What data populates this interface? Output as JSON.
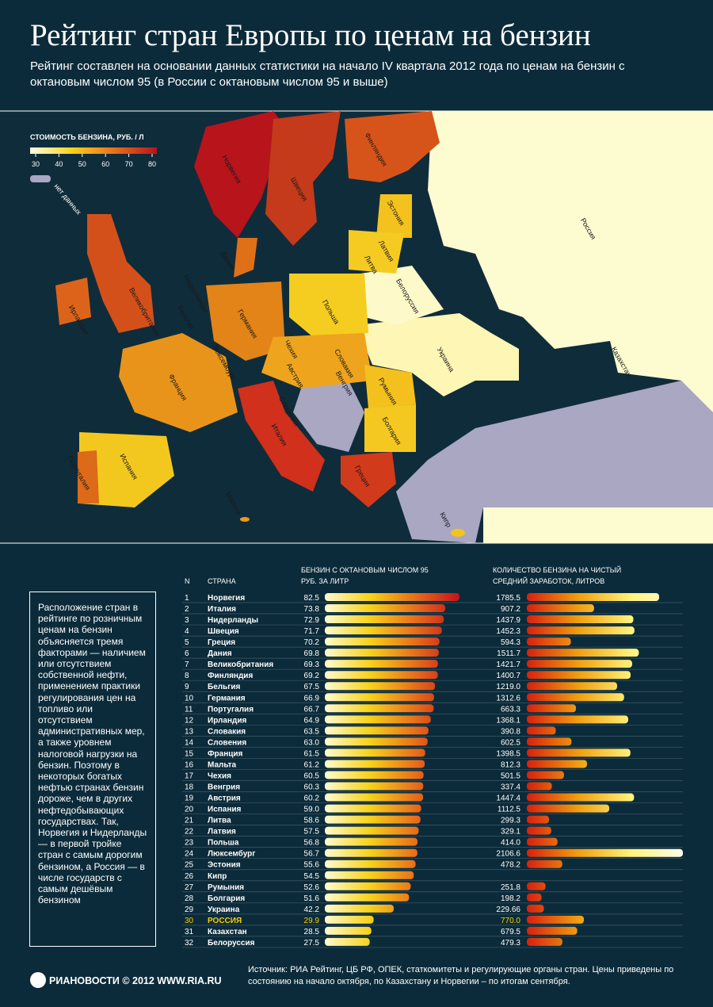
{
  "header": {
    "title": "Рейтинг стран Европы по ценам на бензин",
    "subtitle": "Рейтинг составлен на основании данных статистики на начало IV квартала 2012 года по ценам на бензин с октановым числом 95 (в России с октановым числом 95 и выше)"
  },
  "map": {
    "legend_title": "СТОИМОСТЬ БЕНЗИНА, РУБ. / Л",
    "legend_ticks": [
      30,
      40,
      50,
      60,
      70,
      80
    ],
    "legend_colors": [
      "#fffde0",
      "#f7d21a",
      "#e8701a",
      "#b8121c"
    ],
    "no_data_label": "нет данных",
    "no_data_color": "#a9a7c2",
    "labels": [
      "Норвегия",
      "Швеция",
      "Финляндия",
      "Эстония",
      "Латвия",
      "Литва",
      "Россия",
      "Дания",
      "Нидерланды",
      "Великобритания",
      "Ирландия",
      "Бельгия",
      "Германия",
      "Польша",
      "Белоруссия",
      "Украина",
      "Казахстан",
      "Чехия",
      "Люксембург",
      "Словакия",
      "Австрия",
      "Венгрия",
      "Франция",
      "Румыния",
      "Словения",
      "Болгария",
      "Италия",
      "Испания",
      "Португалия",
      "Греция",
      "Мальта",
      "Кипр"
    ]
  },
  "table": {
    "rank_header": "N",
    "country_header": "СТРАНА",
    "ranks": [
      1,
      2,
      3,
      4,
      5,
      6,
      7,
      8,
      9,
      10,
      11,
      12,
      13,
      14,
      15,
      16,
      17,
      18,
      19,
      20,
      21,
      22,
      23,
      24,
      25,
      26,
      27,
      28,
      29,
      30,
      31,
      32
    ],
    "countries": [
      "Норвегия",
      "Италия",
      "Нидерланды",
      "Швеция",
      "Греция",
      "Дания",
      "Великобритания",
      "Финляндия",
      "Бельгия",
      "Германия",
      "Португалия",
      "Ирландия",
      "Словакия",
      "Словения",
      "Франция",
      "Мальта",
      "Чехия",
      "Венгрия",
      "Австрия",
      "Испания",
      "Литва",
      "Латвия",
      "Польша",
      "Люксембург",
      "Эстония",
      "Кипр",
      "Румыния",
      "Болгария",
      "Украина",
      "РОССИЯ",
      "Казахстан",
      "Белоруссия"
    ],
    "highlight_rank": 30,
    "highlight_color": "#f5d000"
  },
  "chart_data": [
    {
      "type": "bar",
      "title_lines": [
        "БЕНЗИН С ОКТАНОВЫМ ЧИСЛОМ 95",
        "РУБ. ЗА ЛИТР"
      ],
      "values": [
        82.5,
        73.8,
        72.9,
        71.7,
        70.2,
        69.8,
        69.3,
        69.2,
        67.5,
        66.9,
        66.7,
        64.9,
        63.5,
        63.0,
        61.5,
        61.2,
        60.5,
        60.3,
        60.2,
        59.0,
        58.6,
        57.5,
        56.8,
        56.7,
        55.6,
        54.5,
        52.6,
        51.6,
        42.2,
        29.9,
        28.5,
        27.5
      ],
      "value_labels": [
        "82.5",
        "73.8",
        "72.9",
        "71.7",
        "70.2",
        "69.8",
        "69.3",
        "69.2",
        "67.5",
        "66.9",
        "66.7",
        "64.9",
        "63.5",
        "63.0",
        "61.5",
        "61.2",
        "60.5",
        "60.3",
        "60.2",
        "59.0",
        "58.6",
        "57.5",
        "56.8",
        "56.7",
        "55.6",
        "54.5",
        "52.6",
        "51.6",
        "42.2",
        "29.9",
        "28.5",
        "27.5"
      ],
      "colors": [
        "#fffbd0",
        "#f7d21a",
        "#e8701a",
        "#c4121c"
      ]
    },
    {
      "type": "bar",
      "title_lines": [
        "КОЛИЧЕСТВО БЕНЗИНА НА ЧИСТЫЙ",
        "СРЕДНИЙ ЗАРАБОТОК, ЛИТРОВ"
      ],
      "values": [
        1785.5,
        907.2,
        1437.9,
        1452.3,
        594.3,
        1511.7,
        1421.7,
        1400.7,
        1219.0,
        1312.6,
        663.3,
        1368.1,
        390.8,
        602.5,
        1398.5,
        812.3,
        501.5,
        337.4,
        1447.4,
        1112.5,
        299.3,
        329.1,
        414.0,
        2106.6,
        478.2,
        null,
        251.8,
        198.2,
        229.66,
        770.0,
        679.5,
        479.3
      ],
      "value_labels": [
        "1785.5",
        "907.2",
        "1437.9",
        "1452.3",
        "594.3",
        "1511.7",
        "1421.7",
        "1400.7",
        "1219.0",
        "1312.6",
        "663.3",
        "1368.1",
        "390.8",
        "602.5",
        "1398.5",
        "812.3",
        "501.5",
        "337.4",
        "1447.4",
        "1112.5",
        "299.3",
        "329.1",
        "414.0",
        "2106.6",
        "478.2",
        null,
        "251.8",
        "198.2",
        "229.66",
        "770.0",
        "679.5",
        "479.3"
      ],
      "colors": [
        "#d8200e",
        "#f0a010",
        "#fff27a",
        "#fffde8"
      ]
    }
  ],
  "note": "Расположение стран в рейтинге по розничным ценам на бензин объясняется тремя факторами — наличием или отсутствием собственной нефти, применением практики регулирования цен на топливо или отсутствием административных мер, а также уровнем налоговой нагрузки на бензин. Поэтому в некоторых богатых нефтью странах бензин дороже, чем в других нефтедобывающих государствах. Так, Норвегия и Нидерланды — в первой тройке стран с самым дорогим бензином, а Россия — в числе государств с самым дешёвым бензином",
  "footer": {
    "logo": "РИАНОВОСТИ © 2012 WWW.RIA.RU",
    "source": "Источник: РИА Рейтинг, ЦБ РФ, ОПЕК, статкомитеты и регулирующие органы стран. Цены приведены по состоянию на начало октября, по Казахстану и Норвегии – по итогам сентября."
  }
}
